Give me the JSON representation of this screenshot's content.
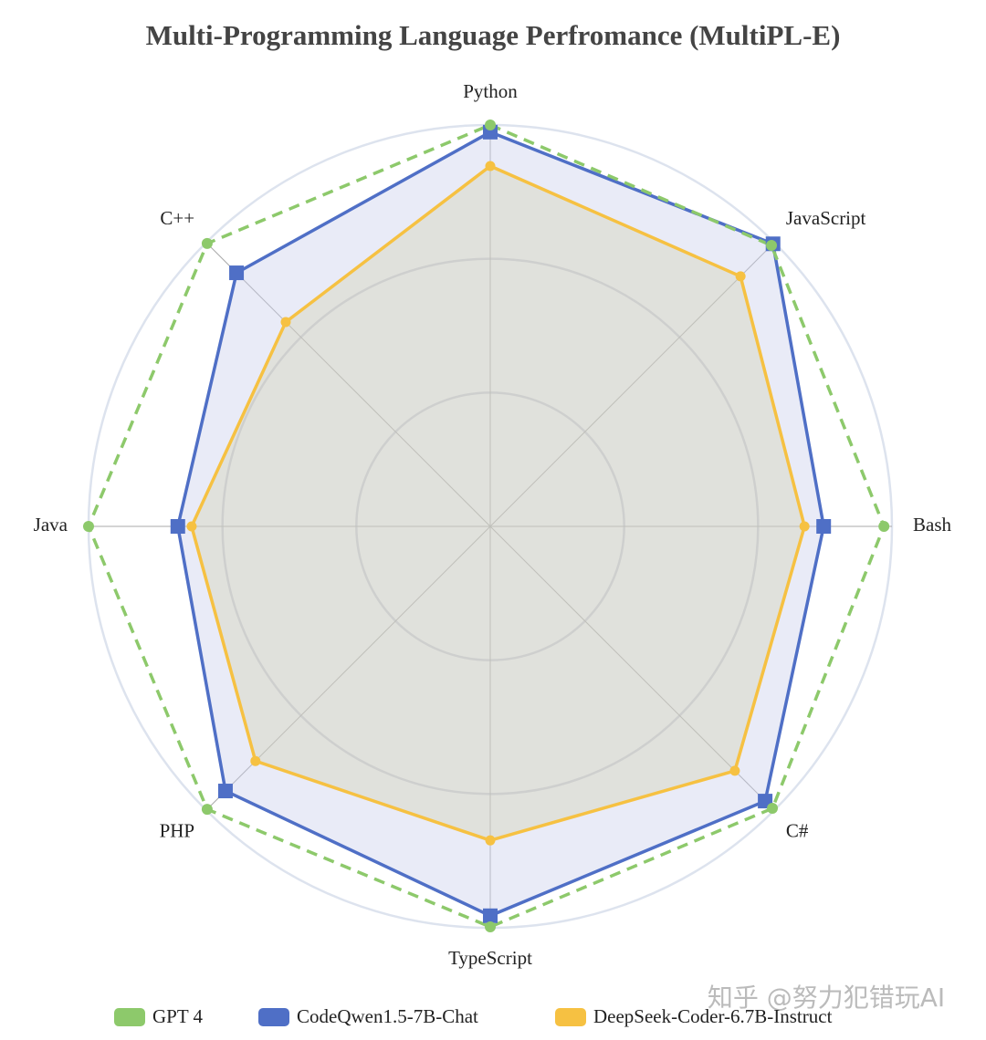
{
  "chart_data": {
    "type": "radar",
    "title": "Multi-Programming Language Perfromance (MultiPL-E)",
    "categories": [
      "Python",
      "JavaScript",
      "Bash",
      "C#",
      "TypeScript",
      "PHP",
      "Java",
      "C++"
    ],
    "rlim": [
      0,
      90
    ],
    "rticks": [
      30,
      60,
      90
    ],
    "series": [
      {
        "name": "GPT 4",
        "color": "#8dc96b",
        "marker": "circle",
        "dashed": true,
        "fill": false,
        "values": [
          90,
          89.1,
          88.2,
          89.4,
          89.8,
          89.7,
          90,
          89.7
        ]
      },
      {
        "name": "CodeQwen1.5-7B-Chat",
        "color": "#4f6fc6",
        "marker": "square",
        "dashed": false,
        "fill": true,
        "values": [
          88.4,
          89.6,
          74.7,
          87.1,
          87.3,
          83.9,
          70,
          80.4
        ]
      },
      {
        "name": "DeepSeek-Coder-6.7B-Instruct",
        "color": "#f6c142",
        "marker": "circle",
        "dashed": false,
        "fill": true,
        "values": [
          80.8,
          79.3,
          70.4,
          77.5,
          70.4,
          74.4,
          66.9,
          64.8
        ]
      }
    ],
    "watermark": "知乎 @努力犯错玩AI"
  }
}
